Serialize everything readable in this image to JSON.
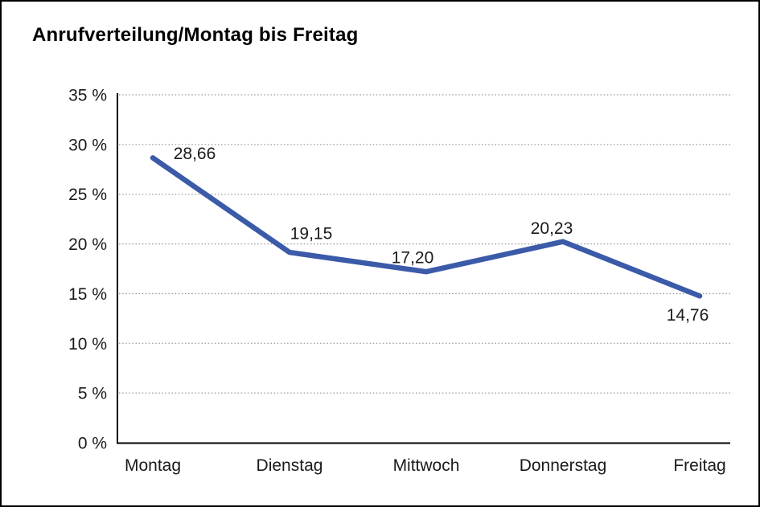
{
  "chart_data": {
    "type": "line",
    "title": "Anrufverteilung/Montag bis Freitag",
    "categories": [
      "Montag",
      "Dienstag",
      "Mittwoch",
      "Donnerstag",
      "Freitag"
    ],
    "values": [
      28.66,
      19.15,
      17.2,
      20.23,
      14.76
    ],
    "value_labels": [
      "28,66",
      "19,15",
      "17,20",
      "20,23",
      "14,76"
    ],
    "ytick_labels": [
      "0 %",
      "5 %",
      "10 %",
      "15 %",
      "20 %",
      "25 %",
      "30 %",
      "35 %"
    ],
    "ylim": [
      0,
      35
    ],
    "ytick_step": 5,
    "xlabel": "",
    "ylabel": "",
    "grid": "horizontal-dotted",
    "legend": "none",
    "series_name": "Anrufverteilung",
    "line_color": "#3B5BA9",
    "axis_color": "#000000",
    "grid_color": "#999999",
    "label_color": "#1a1a1a"
  }
}
